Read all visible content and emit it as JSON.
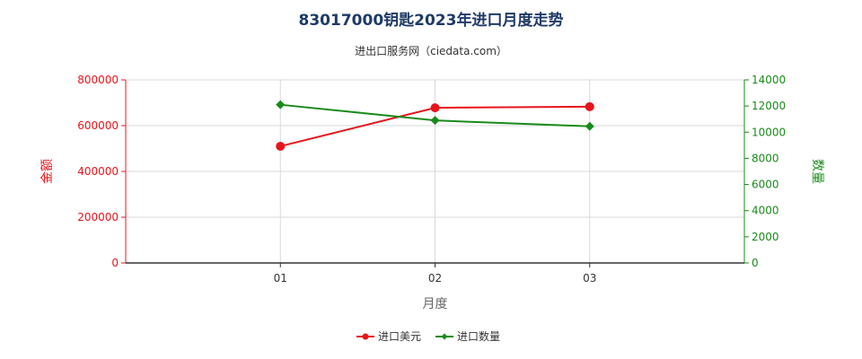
{
  "chart_data": {
    "type": "line",
    "title": "83017000钥匙2023年进口月度走势",
    "subtitle": "进出口服务网（ciedata.com）",
    "categories": [
      "01",
      "02",
      "03"
    ],
    "xlabel": "月度",
    "y_left": {
      "label": "金额",
      "ylim": [
        0,
        800000
      ],
      "ticks": [
        "0",
        "200000",
        "400000",
        "600000",
        "800000"
      ],
      "color": "#e8141b"
    },
    "y_right": {
      "label": "数量",
      "ylim": [
        0,
        14000
      ],
      "ticks": [
        "0",
        "2000",
        "4000",
        "6000",
        "8000",
        "10000",
        "12000",
        "14000"
      ],
      "color": "#1a8a1a"
    },
    "series": [
      {
        "name": "进口美元",
        "axis": "left",
        "color": "#e8141b",
        "marker": "circle",
        "values": [
          510000,
          678000,
          683000
        ]
      },
      {
        "name": "进口数量",
        "axis": "right",
        "color": "#1a8a1a",
        "marker": "diamond",
        "values": [
          12100,
          10900,
          10450
        ]
      }
    ],
    "grid": true,
    "legend_position": "bottom-center"
  }
}
